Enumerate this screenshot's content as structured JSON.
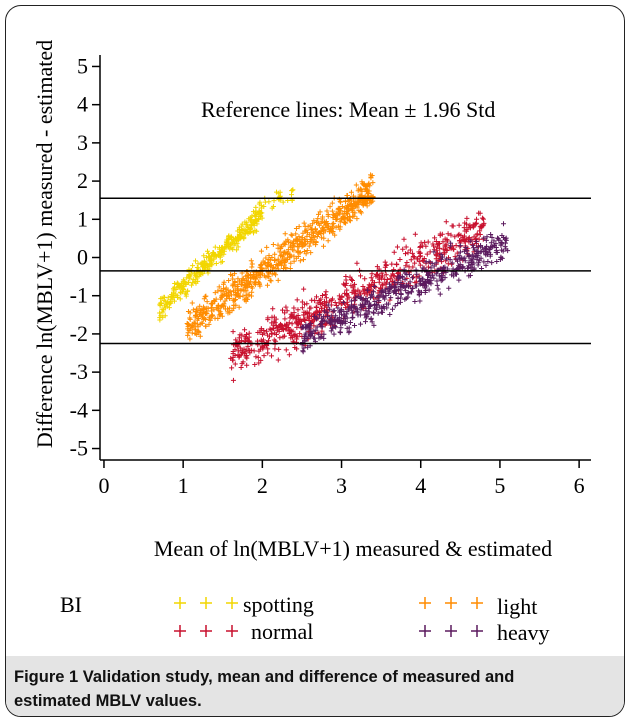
{
  "chart_data": {
    "type": "scatter",
    "title": "",
    "xlabel": "Mean of ln(MBLV+1) measured & estimated",
    "ylabel": "Difference ln(MBLV+1) measured - estimated",
    "xlim": [
      -0.05,
      6.15
    ],
    "ylim": [
      -5.3,
      5.3
    ],
    "x_ticks": [
      "0",
      "1",
      "2",
      "3",
      "4",
      "5",
      "6"
    ],
    "x_tick_values": [
      0,
      1,
      2,
      3,
      4,
      5,
      6
    ],
    "y_ticks": [
      "5",
      "4",
      "3",
      "2",
      "1",
      "0",
      "-1",
      "-2",
      "-3",
      "-4",
      "-5"
    ],
    "y_tick_values": [
      5,
      4,
      3,
      2,
      1,
      0,
      -1,
      -2,
      -3,
      -4,
      -5
    ],
    "annotation": "Reference lines: Mean ± 1.96 Std",
    "reference_lines": [
      1.55,
      -0.35,
      -2.25
    ],
    "marker": "+",
    "grid": false,
    "legend_title": "BI",
    "legend_position": "bottom",
    "series": [
      {
        "name": "spotting",
        "color": "#f2d600",
        "clusters": [
          {
            "x_range": [
              0.7,
              2.0
            ],
            "slope": 1.95,
            "y_at_xmin": -1.35,
            "spread": 0.28,
            "n": 320
          },
          {
            "x_range": [
              1.9,
              2.4
            ],
            "slope": 1.0,
            "y_at_xmin": 1.25,
            "spread": 0.3,
            "n": 25
          }
        ]
      },
      {
        "name": "light",
        "color": "#ff8c00",
        "clusters": [
          {
            "x_range": [
              1.05,
              3.4
            ],
            "slope": 1.55,
            "y_at_xmin": -1.85,
            "spread": 0.45,
            "n": 700
          }
        ]
      },
      {
        "name": "normal",
        "color": "#c8102e",
        "clusters": [
          {
            "x_range": [
              1.6,
              4.8
            ],
            "slope": 1.05,
            "y_at_xmin": -2.6,
            "spread": 0.55,
            "n": 650
          }
        ]
      },
      {
        "name": "heavy",
        "color": "#5b1a5e",
        "clusters": [
          {
            "x_range": [
              2.5,
              5.1
            ],
            "slope": 0.95,
            "y_at_xmin": -2.05,
            "spread": 0.45,
            "n": 520
          }
        ]
      }
    ]
  },
  "legend": {
    "title": "BI",
    "items": [
      {
        "label": "spotting",
        "color": "#f2d600"
      },
      {
        "label": "light",
        "color": "#ff8c00"
      },
      {
        "label": "normal",
        "color": "#c8102e"
      },
      {
        "label": "heavy",
        "color": "#5b1a5e"
      }
    ]
  },
  "caption": {
    "label": "Figure 1",
    "text": " Validation study, mean and difference of measured and estimated MBLV values."
  }
}
